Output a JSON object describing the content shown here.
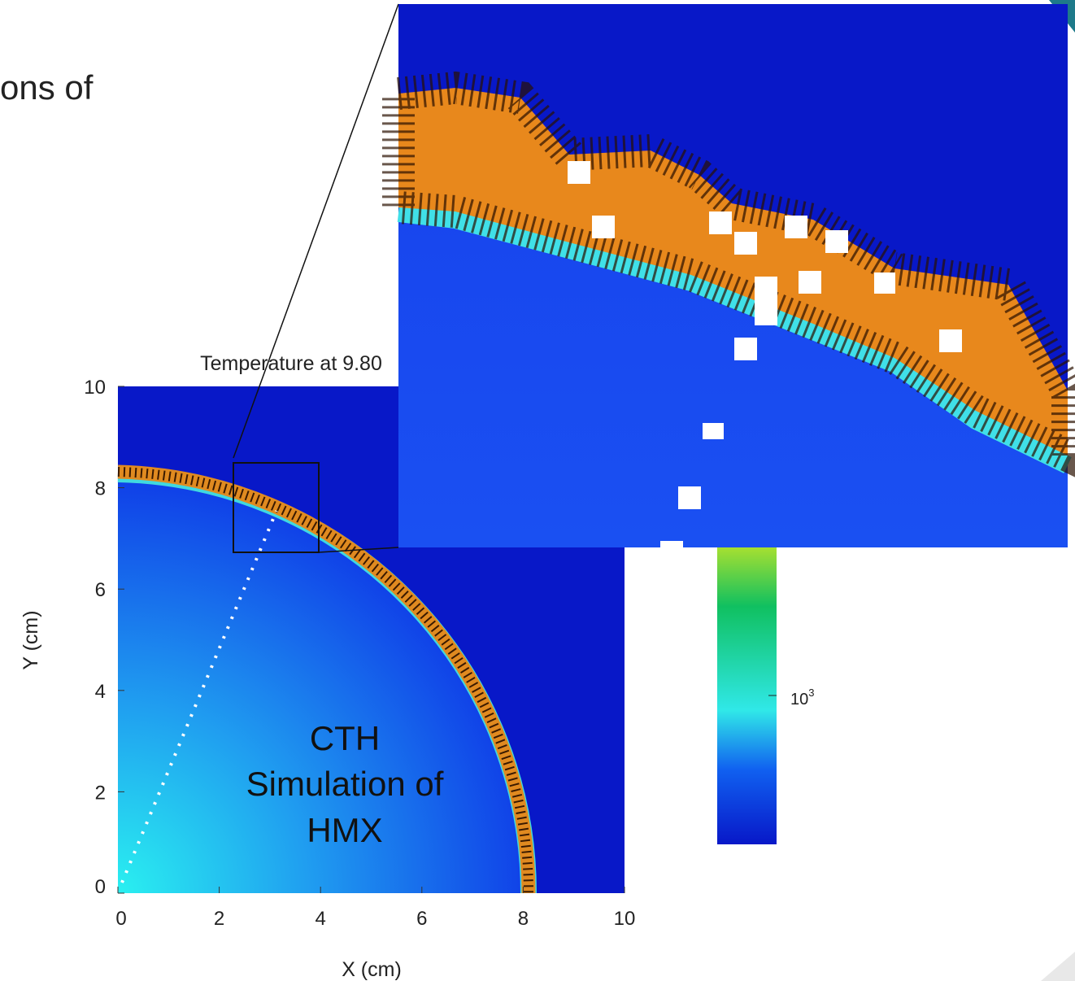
{
  "slide": {
    "text": "ons of",
    "caption": [
      "CTH",
      "Simulation of",
      "HMX"
    ]
  },
  "plot": {
    "title": "Temperature at 9.80",
    "x_label": "X (cm)",
    "y_label": "Y (cm)",
    "xlim": [
      0,
      10
    ],
    "ylim": [
      0,
      10
    ],
    "xticks": [
      0,
      2,
      4,
      6,
      8,
      10
    ],
    "yticks": [
      0,
      2,
      4,
      6,
      8,
      10
    ]
  },
  "colorbar": {
    "tick_label": {
      "base": "10",
      "exponent": "3"
    }
  }
}
